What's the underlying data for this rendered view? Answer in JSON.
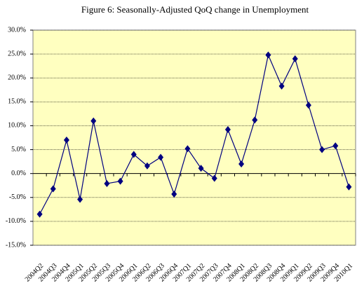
{
  "chart_data": {
    "type": "line",
    "title": "Figure 6: Seasonally-Adjusted QoQ change in Unemployment",
    "categories": [
      "2004Q2",
      "2004Q3",
      "2004Q4",
      "2005Q1",
      "2005Q2",
      "2005Q3",
      "2005Q4",
      "2006Q1",
      "2006Q2",
      "2006Q3",
      "2006Q4",
      "2007Q1",
      "2007Q2",
      "2007Q3",
      "2007Q4",
      "2008Q1",
      "2008Q2",
      "2008Q3",
      "2008Q4",
      "2009Q1",
      "2009Q2",
      "2009Q3",
      "2009Q4",
      "2010Q1"
    ],
    "values": [
      -8.5,
      -3.2,
      7.0,
      -5.4,
      11.0,
      -2.1,
      -1.6,
      4.0,
      1.6,
      3.4,
      -4.3,
      5.2,
      1.1,
      -1.0,
      9.2,
      2.0,
      11.2,
      24.8,
      18.3,
      24.0,
      14.3,
      5.0,
      5.8,
      -2.8
    ],
    "color": "#000080",
    "background": "#ffffc0",
    "ylim": [
      -15,
      30
    ],
    "yticks": [
      {
        "value": -15,
        "label": "-15.0%"
      },
      {
        "value": -10,
        "label": "-10.0%"
      },
      {
        "value": -5,
        "label": "-5.0%"
      },
      {
        "value": 0,
        "label": "0.0%"
      },
      {
        "value": 5,
        "label": "5.0%"
      },
      {
        "value": 10,
        "label": "10.0%"
      },
      {
        "value": 15,
        "label": "15.0%"
      },
      {
        "value": 20,
        "label": "20.0%"
      },
      {
        "value": 25,
        "label": "25.0%"
      },
      {
        "value": 30,
        "label": "30.0%"
      }
    ],
    "grid": true
  }
}
